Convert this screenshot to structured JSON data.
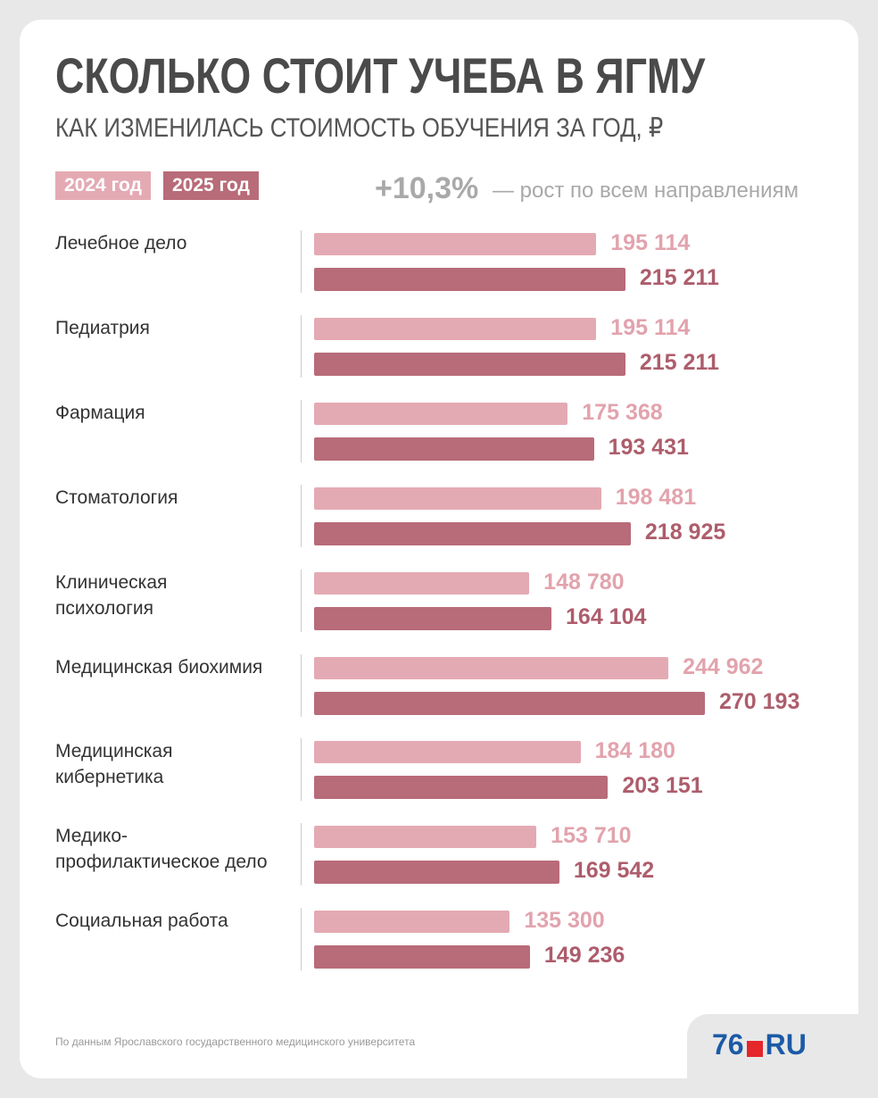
{
  "chart_data": {
    "type": "bar",
    "orientation": "horizontal",
    "title": "СКОЛЬКО СТОИТ УЧЕБА В ЯГМУ",
    "subtitle": "КАК ИЗМЕНИЛАСЬ СТОИМОСТЬ ОБУЧЕНИЯ ЗА ГОД, ₽",
    "annotation": {
      "highlight": "+10,3%",
      "text": "— рост по всем направлениям"
    },
    "categories": [
      "Лечебное дело",
      "Педиатрия",
      "Фармация",
      "Стоматология",
      "Клиническая психология",
      "Медицинская биохимия",
      "Медицинская кибернетика",
      "Медико-профилактическое дело",
      "Социальная работа"
    ],
    "series": [
      {
        "name": "2024 год",
        "color": "#e4aab3",
        "label_color": "#e2a3ad",
        "values": [
          195114,
          195114,
          175368,
          198481,
          148780,
          244962,
          184180,
          153710,
          135300
        ],
        "value_labels": [
          "195 114",
          "195 114",
          "175 368",
          "198 481",
          "148 780",
          "244 962",
          "184 180",
          "153 710",
          "135 300"
        ]
      },
      {
        "name": "2025 год",
        "color": "#b86b78",
        "label_color": "#ad5d6c",
        "values": [
          215211,
          215211,
          193431,
          218925,
          164104,
          270193,
          203151,
          169542,
          149236
        ],
        "value_labels": [
          "215 211",
          "215 211",
          "193 431",
          "218 925",
          "164 104",
          "270 193",
          "203 151",
          "169 542",
          "149 236"
        ]
      }
    ],
    "source": "По данным Ярославского государственного медицинского университета",
    "logo": {
      "left": "76",
      "right": "RU"
    }
  }
}
